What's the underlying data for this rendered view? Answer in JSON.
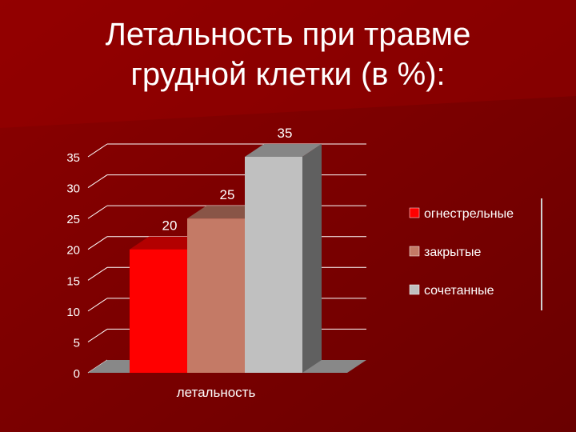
{
  "slide": {
    "title_line1": "Летальность при травме",
    "title_line2": "грудной клетки (в %):"
  },
  "chart_data": {
    "type": "bar",
    "categories": [
      "летальность"
    ],
    "series": [
      {
        "name": "огнестрельные",
        "values": [
          20
        ],
        "color": "#ff0000"
      },
      {
        "name": "закрытые",
        "values": [
          25
        ],
        "color": "#c47a66"
      },
      {
        "name": "сочетанные",
        "values": [
          35
        ],
        "color": "#c0c0c0"
      }
    ],
    "ylim": [
      0,
      35
    ],
    "yticks": [
      "0",
      "5",
      "10",
      "15",
      "20",
      "25",
      "30",
      "35"
    ],
    "data_labels": [
      "20",
      "25",
      "35"
    ],
    "grid": true,
    "legend": "right",
    "style": "3d"
  }
}
